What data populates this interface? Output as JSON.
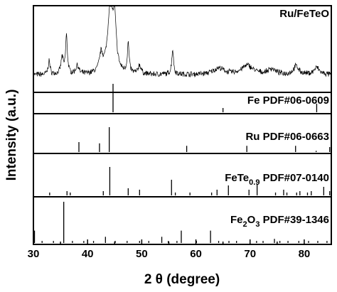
{
  "chart_data": {
    "type": "line",
    "xlabel": "2 θ (degree)",
    "ylabel": "Intensity (a.u.)",
    "xlim": [
      30,
      85
    ],
    "xticks": [
      30,
      40,
      50,
      60,
      70,
      80
    ],
    "grid": false,
    "legend": "none",
    "pattern": {
      "name": "Ru/FeTeO",
      "color": "#000000",
      "baseline": 0.15,
      "noise": 0.035,
      "peaks": [
        {
          "x": 32.9,
          "h": 0.2,
          "w": 0.2
        },
        {
          "x": 35.3,
          "h": 0.24,
          "w": 0.25
        },
        {
          "x": 36.1,
          "h": 0.55,
          "w": 0.2
        },
        {
          "x": 38.1,
          "h": 0.13,
          "w": 0.3
        },
        {
          "x": 42.5,
          "h": 0.25,
          "w": 0.4
        },
        {
          "x": 44.2,
          "h": 1.0,
          "w": 0.55
        },
        {
          "x": 45.0,
          "h": 0.65,
          "w": 0.35
        },
        {
          "x": 47.5,
          "h": 0.42,
          "w": 0.2
        },
        {
          "x": 49.6,
          "h": 0.13,
          "w": 0.3
        },
        {
          "x": 55.7,
          "h": 0.36,
          "w": 0.2
        },
        {
          "x": 64.2,
          "h": 0.09,
          "w": 1.2
        },
        {
          "x": 69.5,
          "h": 0.13,
          "w": 1.3
        },
        {
          "x": 74.0,
          "h": 0.08,
          "w": 0.8
        },
        {
          "x": 78.5,
          "h": 0.12,
          "w": 0.6
        },
        {
          "x": 82.3,
          "h": 0.1,
          "w": 0.6
        }
      ]
    },
    "references": [
      {
        "label": "Fe PDF#06-0609",
        "lines": [
          {
            "x": 44.7,
            "h": 1.0
          },
          {
            "x": 65.0,
            "h": 0.15
          },
          {
            "x": 82.3,
            "h": 0.3
          }
        ]
      },
      {
        "label": "Ru PDF#06-0663",
        "lines": [
          {
            "x": 38.4,
            "h": 0.4
          },
          {
            "x": 42.2,
            "h": 0.35
          },
          {
            "x": 44.0,
            "h": 1.0
          },
          {
            "x": 58.3,
            "h": 0.25
          },
          {
            "x": 69.4,
            "h": 0.25
          },
          {
            "x": 78.4,
            "h": 0.25
          },
          {
            "x": 82.2,
            "h": 0.05
          },
          {
            "x": 84.7,
            "h": 0.2
          }
        ]
      },
      {
        "label_main": "FeTe",
        "label_sub": "0.9",
        "label_rest": " PDF#07-0140",
        "lines": [
          {
            "x": 33.0,
            "h": 0.1
          },
          {
            "x": 36.2,
            "h": 0.15
          },
          {
            "x": 36.8,
            "h": 0.1
          },
          {
            "x": 42.9,
            "h": 0.15
          },
          {
            "x": 44.1,
            "h": 1.0
          },
          {
            "x": 47.5,
            "h": 0.25
          },
          {
            "x": 49.6,
            "h": 0.2
          },
          {
            "x": 55.5,
            "h": 0.55
          },
          {
            "x": 56.2,
            "h": 0.1
          },
          {
            "x": 58.9,
            "h": 0.1
          },
          {
            "x": 62.9,
            "h": 0.1
          },
          {
            "x": 63.9,
            "h": 0.2
          },
          {
            "x": 66.0,
            "h": 0.35
          },
          {
            "x": 69.8,
            "h": 0.2
          },
          {
            "x": 71.3,
            "h": 0.4
          },
          {
            "x": 74.7,
            "h": 0.1
          },
          {
            "x": 76.2,
            "h": 0.2
          },
          {
            "x": 76.8,
            "h": 0.1
          },
          {
            "x": 78.6,
            "h": 0.1
          },
          {
            "x": 79.2,
            "h": 0.15
          },
          {
            "x": 80.6,
            "h": 0.1
          },
          {
            "x": 81.3,
            "h": 0.15
          },
          {
            "x": 83.6,
            "h": 0.3
          },
          {
            "x": 84.7,
            "h": 0.15
          }
        ]
      },
      {
        "label_main": "Fe",
        "label_sub": "2",
        "label_mid": "O",
        "label_sub2": "3",
        "label_rest": " PDF#39-1346",
        "lines": [
          {
            "x": 30.2,
            "h": 0.3
          },
          {
            "x": 31.6,
            "h": 0.05
          },
          {
            "x": 33.7,
            "h": 0.05
          },
          {
            "x": 35.6,
            "h": 1.0
          },
          {
            "x": 37.2,
            "h": 0.05
          },
          {
            "x": 39.3,
            "h": 0.05
          },
          {
            "x": 41.1,
            "h": 0.05
          },
          {
            "x": 43.3,
            "h": 0.15
          },
          {
            "x": 45.1,
            "h": 0.05
          },
          {
            "x": 47.3,
            "h": 0.05
          },
          {
            "x": 49.6,
            "h": 0.05
          },
          {
            "x": 51.3,
            "h": 0.05
          },
          {
            "x": 53.7,
            "h": 0.15
          },
          {
            "x": 54.9,
            "h": 0.05
          },
          {
            "x": 56.5,
            "h": 0.05
          },
          {
            "x": 57.3,
            "h": 0.3
          },
          {
            "x": 60.1,
            "h": 0.05
          },
          {
            "x": 62.7,
            "h": 0.3
          },
          {
            "x": 64.2,
            "h": 0.05
          },
          {
            "x": 66.1,
            "h": 0.05
          },
          {
            "x": 67.5,
            "h": 0.05
          },
          {
            "x": 71.2,
            "h": 0.05
          },
          {
            "x": 72.4,
            "h": 0.05
          },
          {
            "x": 74.5,
            "h": 0.1
          },
          {
            "x": 75.5,
            "h": 0.05
          },
          {
            "x": 77.0,
            "h": 0.05
          },
          {
            "x": 79.0,
            "h": 0.05
          },
          {
            "x": 80.8,
            "h": 0.05
          },
          {
            "x": 82.5,
            "h": 0.05
          },
          {
            "x": 84.2,
            "h": 0.05
          }
        ]
      }
    ]
  }
}
